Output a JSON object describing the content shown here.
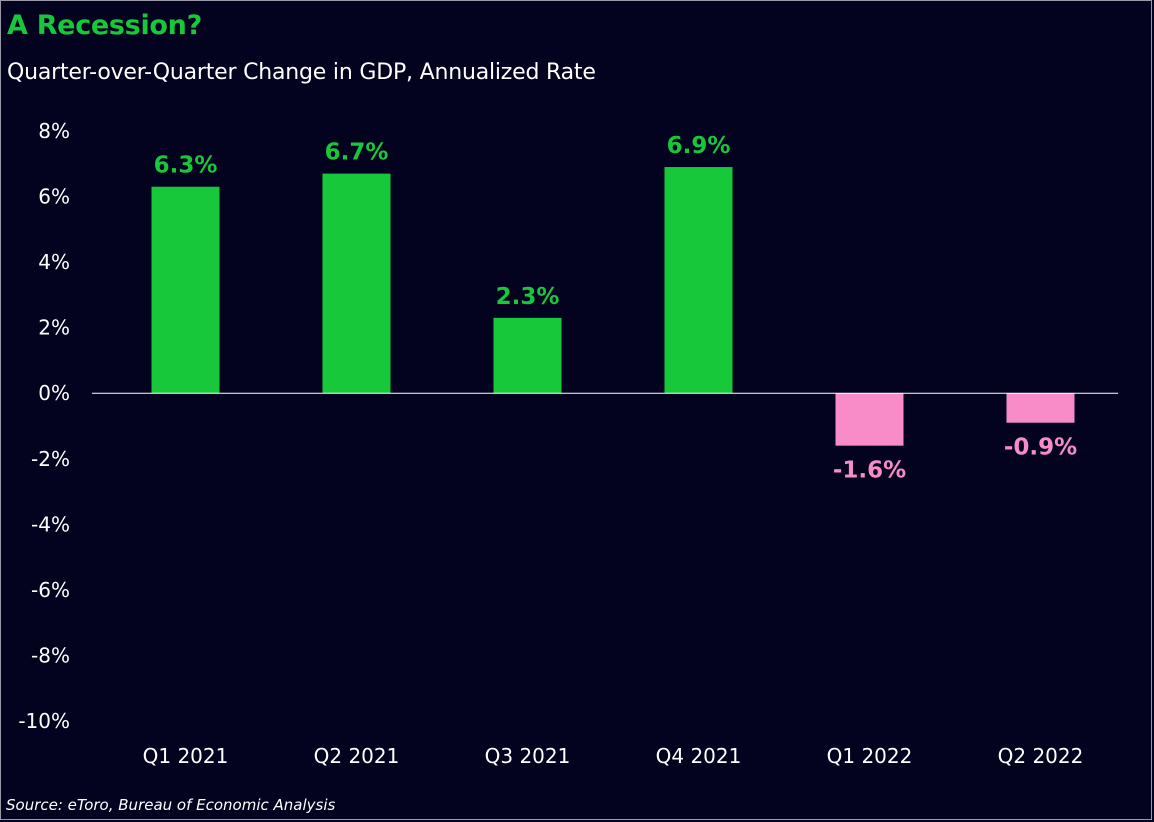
{
  "title": "A Recession?",
  "subtitle": "Quarter-over-Quarter Change in GDP, Annualized Rate",
  "source": "Source: eToro, Bureau of Economic Analysis",
  "colors": {
    "background": "#03031f",
    "positive": "#17c83a",
    "negative": "#f78cc8",
    "text": "#ffffff"
  },
  "chart_data": {
    "type": "bar",
    "categories": [
      "Q1 2021",
      "Q2 2021",
      "Q3 2021",
      "Q4 2021",
      "Q1 2022",
      "Q2 2022"
    ],
    "values": [
      6.3,
      6.7,
      2.3,
      6.9,
      -1.6,
      -0.9
    ],
    "data_labels": [
      "6.3%",
      "6.7%",
      "2.3%",
      "6.9%",
      "-1.6%",
      "-0.9%"
    ],
    "yticks": [
      8,
      6,
      4,
      2,
      0,
      -2,
      -4,
      -6,
      -8,
      -10
    ],
    "ytick_labels": [
      "8%",
      "6%",
      "4%",
      "2%",
      "0%",
      "-2%",
      "-4%",
      "-6%",
      "-8%",
      "-10%"
    ],
    "ylim": [
      -10,
      8
    ],
    "grid": false,
    "legend": false
  }
}
